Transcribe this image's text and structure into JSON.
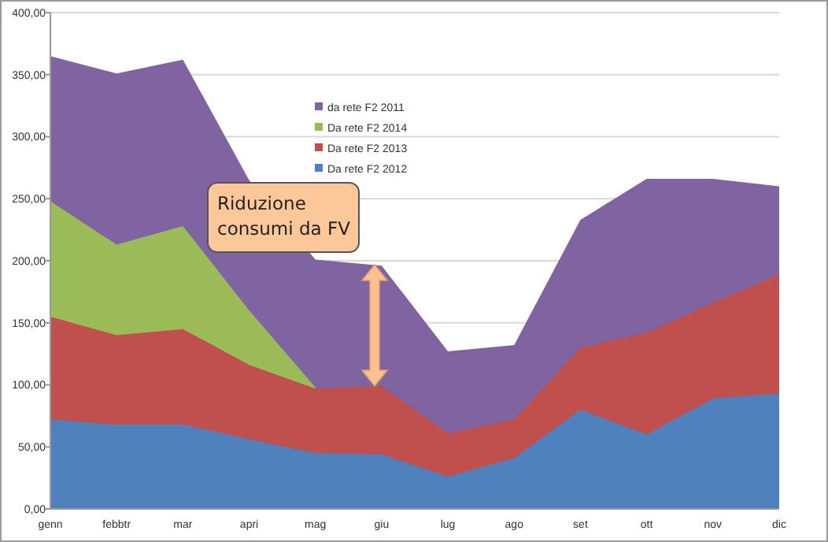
{
  "chart_data": {
    "type": "area",
    "categories": [
      "genn",
      "febbtr",
      "mar",
      "apri",
      "mag",
      "giu",
      "lug",
      "ago",
      "set",
      "ott",
      "nov",
      "dic"
    ],
    "series": [
      {
        "name": "da rete F2 2011",
        "color": "#8064a2",
        "values": [
          365,
          351,
          362,
          265,
          201,
          196,
          127,
          132,
          233,
          266,
          266,
          260
        ]
      },
      {
        "name": "Da rete F2 2014",
        "color": "#9bbb59",
        "values": [
          248,
          213,
          228,
          160,
          98,
          null,
          null,
          null,
          null,
          null,
          null,
          null
        ]
      },
      {
        "name": "Da rete F2 2013",
        "color": "#c0504d",
        "values": [
          155,
          140,
          145,
          116,
          97,
          99,
          61,
          72,
          130,
          142,
          166,
          189
        ]
      },
      {
        "name": "Da rete F2 2012",
        "color": "#4f81bd",
        "values": [
          72,
          68,
          68,
          56,
          45,
          44,
          26,
          41,
          80,
          60,
          89,
          93
        ]
      }
    ],
    "ylim": [
      0,
      400
    ],
    "yticks": [
      {
        "value": 0,
        "label": "0,00"
      },
      {
        "value": 50,
        "label": "50,00"
      },
      {
        "value": 100,
        "label": "100,00"
      },
      {
        "value": 150,
        "label": "150,00"
      },
      {
        "value": 200,
        "label": "200,00"
      },
      {
        "value": 250,
        "label": "250,00"
      },
      {
        "value": 300,
        "label": "300,00"
      },
      {
        "value": 350,
        "label": "350,00"
      },
      {
        "value": 400,
        "label": "400,00"
      }
    ],
    "grid": "y",
    "legend": "top",
    "annotations": [
      "Riduzione consumi da FV"
    ]
  }
}
